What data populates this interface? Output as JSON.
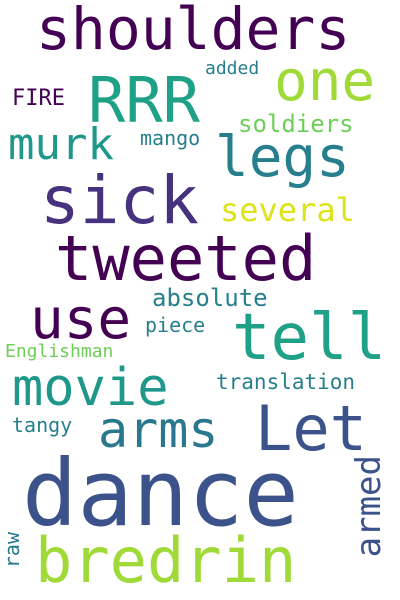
{
  "words": [
    {
      "key": "shoulders",
      "text": "shoulders",
      "color": "#440154"
    },
    {
      "key": "one",
      "text": "one",
      "color": "#a0da39"
    },
    {
      "key": "rrr",
      "text": "RRR",
      "color": "#1fa187"
    },
    {
      "key": "added",
      "text": "added",
      "color": "#277f8e"
    },
    {
      "key": "fire",
      "text": "FIRE",
      "color": "#440154"
    },
    {
      "key": "murk",
      "text": "murk",
      "color": "#1f988b"
    },
    {
      "key": "mango",
      "text": "mango",
      "color": "#277f8e"
    },
    {
      "key": "soldiers",
      "text": "soldiers",
      "color": "#6ece58"
    },
    {
      "key": "legs",
      "text": "legs",
      "color": "#277f8e"
    },
    {
      "key": "sick",
      "text": "sick",
      "color": "#46327e"
    },
    {
      "key": "several",
      "text": "several",
      "color": "#dde318"
    },
    {
      "key": "tweeted",
      "text": "tweeted",
      "color": "#440154"
    },
    {
      "key": "absolute",
      "text": "absolute",
      "color": "#277f8e"
    },
    {
      "key": "use",
      "text": "use",
      "color": "#440154"
    },
    {
      "key": "tell",
      "text": "tell",
      "color": "#1fa187"
    },
    {
      "key": "piece",
      "text": "piece",
      "color": "#277f8e"
    },
    {
      "key": "englishman",
      "text": "Englishman",
      "color": "#6ece58"
    },
    {
      "key": "movie",
      "text": "movie",
      "color": "#1f988b"
    },
    {
      "key": "translation",
      "text": "translation",
      "color": "#277f8e"
    },
    {
      "key": "arms",
      "text": "arms",
      "color": "#2a788e"
    },
    {
      "key": "let",
      "text": "Let",
      "color": "#3b528b"
    },
    {
      "key": "tangy",
      "text": "tangy",
      "color": "#277f8e"
    },
    {
      "key": "dance",
      "text": "dance",
      "color": "#3b528b"
    },
    {
      "key": "armed",
      "text": "armed",
      "color": "#3b528b"
    },
    {
      "key": "raw",
      "text": "raw",
      "color": "#2a788e"
    },
    {
      "key": "bredrin",
      "text": "bredrin",
      "color": "#a0da39"
    }
  ]
}
